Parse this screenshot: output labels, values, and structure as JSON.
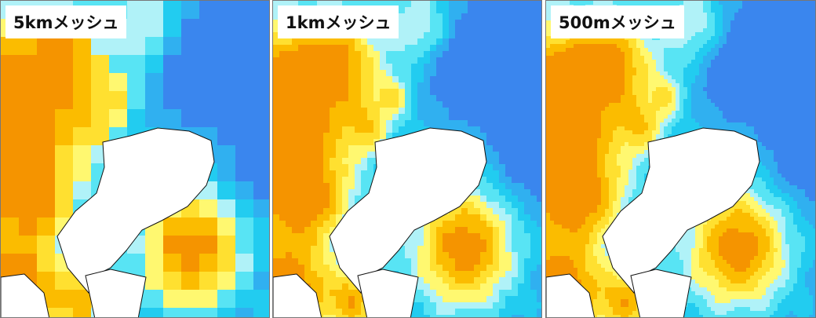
{
  "panels": [
    {
      "label": "5kmメッシュ"
    },
    {
      "label": "1kmメッシュ"
    },
    {
      "label": "500mメッシュ"
    }
  ]
}
